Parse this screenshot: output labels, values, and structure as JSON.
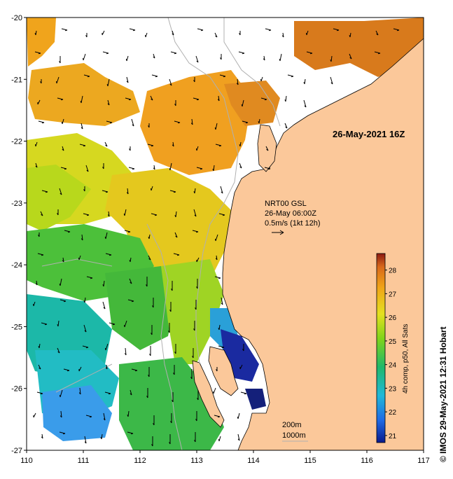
{
  "map": {
    "date_label": "26-May-2021 16Z",
    "credit": "© IMOS 29-May-2021 12:31 Hobart",
    "current_legend": {
      "model": "NRT00 GSL",
      "time": "26-May 06:00Z",
      "scale": "0.5m/s (1kt 12h)"
    },
    "contours": [
      "200m",
      "1000m"
    ],
    "x_axis": {
      "ticks": [
        "110",
        "111",
        "112",
        "113",
        "114",
        "115",
        "116",
        "117"
      ],
      "range": [
        110,
        117
      ]
    },
    "y_axis": {
      "ticks": [
        "-20",
        "-21",
        "-22",
        "-23",
        "-24",
        "-25",
        "-26",
        "-27"
      ],
      "range": [
        -20,
        -27
      ]
    },
    "colorbar": {
      "label": "4h comp, p50, All Sats",
      "ticks": [
        "28",
        "27",
        "26",
        "25",
        "24",
        "23",
        "22",
        "21"
      ],
      "range": [
        20.7,
        28.7
      ]
    },
    "colors": {
      "land": "#fbc89a",
      "cloud": "#ffffff",
      "contour": "#b0b0b0",
      "coast": "#000000"
    }
  }
}
